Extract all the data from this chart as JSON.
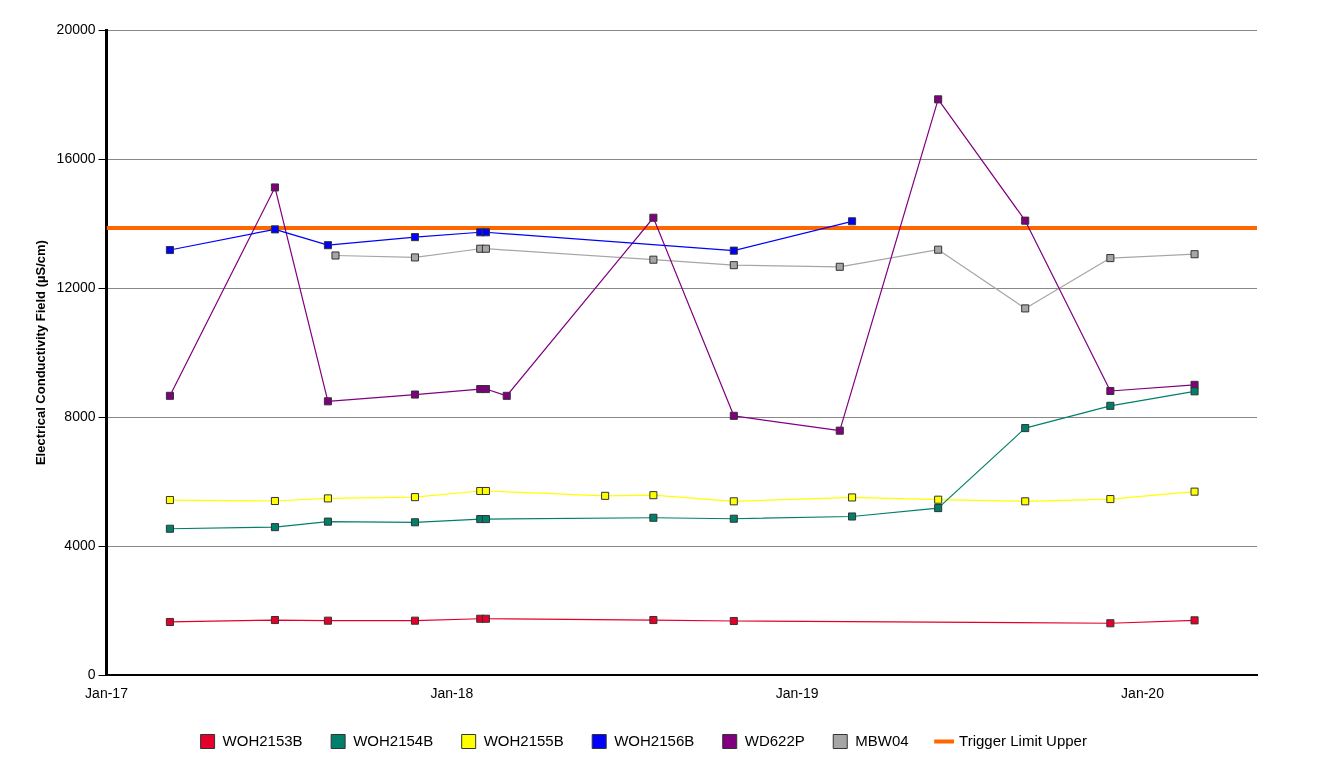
{
  "chart_data": {
    "type": "line",
    "ylabel": "Electrical Conductivity Field (µS/cm)",
    "xlim": [
      "2017-01-01",
      "2020-05-01"
    ],
    "xticks": [
      {
        "value": "2017-01-01",
        "label": "Jan-17"
      },
      {
        "value": "2018-01-01",
        "label": "Jan-18"
      },
      {
        "value": "2019-01-01",
        "label": "Jan-19"
      },
      {
        "value": "2020-01-01",
        "label": "Jan-20"
      }
    ],
    "ylim": [
      0,
      20000
    ],
    "yticks": [
      0,
      4000,
      8000,
      12000,
      16000,
      20000
    ],
    "grid": "y",
    "legend": "bottom",
    "marker": "square",
    "ref_lines": [
      {
        "axis": "y",
        "value": 13860,
        "label": "Trigger Limit Upper",
        "color": "#ff6600"
      }
    ],
    "series": [
      {
        "name": "WOH2153B",
        "color": "#e4002b",
        "x": [
          "2017-03-09",
          "2017-06-28",
          "2017-08-23",
          "2017-11-23",
          "2018-01-31",
          "2018-02-06",
          "2018-08-02",
          "2018-10-26",
          "2019-11-28",
          "2020-02-25"
        ],
        "values": [
          1650,
          1710,
          1690,
          1690,
          1750,
          1750,
          1710,
          1680,
          1610,
          1700
        ]
      },
      {
        "name": "WOH2154B",
        "color": "#00806a",
        "x": [
          "2017-03-09",
          "2017-06-28",
          "2017-08-23",
          "2017-11-23",
          "2018-01-31",
          "2018-02-06",
          "2018-08-02",
          "2018-10-26",
          "2019-02-28",
          "2019-05-30",
          "2019-08-30",
          "2019-11-28",
          "2020-02-25"
        ],
        "values": [
          4540,
          4590,
          4760,
          4740,
          4840,
          4840,
          4880,
          4850,
          4920,
          5180,
          7660,
          8350,
          8800
        ]
      },
      {
        "name": "WOH2155B",
        "color": "#ffff00",
        "x": [
          "2017-03-09",
          "2017-06-28",
          "2017-08-23",
          "2017-11-23",
          "2018-01-31",
          "2018-02-06",
          "2018-06-12",
          "2018-08-02",
          "2018-10-26",
          "2019-02-28",
          "2019-05-30",
          "2019-08-30",
          "2019-11-28",
          "2020-02-25"
        ],
        "values": [
          5430,
          5400,
          5480,
          5520,
          5710,
          5710,
          5560,
          5580,
          5390,
          5510,
          5440,
          5390,
          5460,
          5690
        ]
      },
      {
        "name": "WOH2156B",
        "color": "#0000ff",
        "x": [
          "2017-03-09",
          "2017-06-28",
          "2017-08-23",
          "2017-11-23",
          "2018-01-31",
          "2018-02-06",
          "2018-10-26",
          "2019-02-28"
        ],
        "values": [
          13180,
          13820,
          13330,
          13580,
          13730,
          13730,
          13160,
          14070
        ]
      },
      {
        "name": "WD622P",
        "color": "#800080",
        "x": [
          "2017-03-09",
          "2017-06-28",
          "2017-08-23",
          "2017-11-23",
          "2018-01-31",
          "2018-02-06",
          "2018-02-28",
          "2018-08-02",
          "2018-10-26",
          "2019-02-15",
          "2019-05-30",
          "2019-08-30",
          "2019-11-28",
          "2020-02-25"
        ],
        "values": [
          8660,
          15120,
          8490,
          8700,
          8870,
          8870,
          8660,
          14180,
          8040,
          7580,
          17850,
          14090,
          8810,
          9000
        ]
      },
      {
        "name": "MBW04",
        "color": "#a6a6a6",
        "x": [
          "2017-08-31",
          "2017-11-23",
          "2018-01-31",
          "2018-02-06",
          "2018-08-02",
          "2018-10-26",
          "2019-02-15",
          "2019-05-30",
          "2019-08-30",
          "2019-11-28",
          "2020-02-25"
        ],
        "values": [
          13010,
          12950,
          13220,
          13220,
          12880,
          12710,
          12660,
          13190,
          11370,
          12930,
          13050
        ]
      }
    ]
  }
}
